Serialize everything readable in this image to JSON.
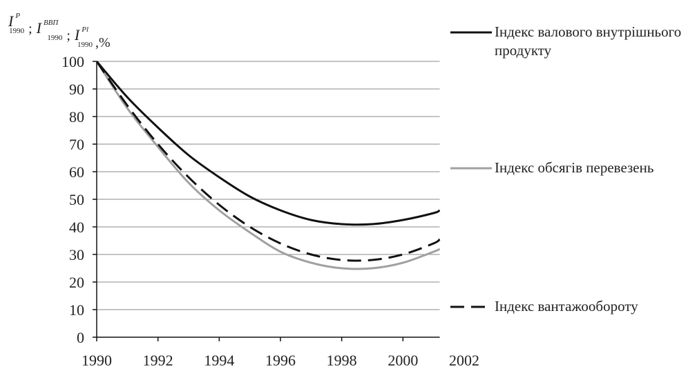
{
  "chart_data": {
    "type": "line",
    "ylabel": {
      "symbols": [
        {
          "base": "I",
          "sup": "P",
          "sub": "1990"
        },
        {
          "base": "I",
          "sup": "ВВП",
          "sub": "1990"
        },
        {
          "base": "I",
          "sup": "Pl",
          "sub": "1990"
        }
      ],
      "separator": ";",
      "unit": ",%"
    },
    "x": [
      1990,
      1991,
      1992,
      1993,
      1994,
      1995,
      1996,
      1997,
      1998,
      1999,
      2000,
      2001,
      2001.2
    ],
    "series": [
      {
        "name": "Індекс валового внутрішнього продукту",
        "color": "#111111",
        "dash": "solid",
        "values": [
          100,
          87,
          76,
          66,
          58,
          51,
          46,
          42.5,
          41,
          41,
          42.5,
          45,
          46
        ]
      },
      {
        "name": "Індекс обсягів перевезень",
        "color": "#a0a0a0",
        "dash": "solid",
        "values": [
          100,
          83,
          69,
          56,
          46,
          38,
          31,
          27,
          25,
          25,
          27,
          31,
          32
        ]
      },
      {
        "name": "Індекс вантажообороту",
        "color": "#111111",
        "dash": "dashed",
        "values": [
          100,
          84,
          70,
          58,
          48,
          40,
          34,
          30,
          28,
          28,
          30,
          34,
          35.5
        ]
      }
    ],
    "xlim": [
      1990,
      2002
    ],
    "xticks": [
      1990,
      1992,
      1994,
      1996,
      1998,
      2000,
      2002
    ],
    "ylim": [
      0,
      100
    ],
    "yticks": [
      0,
      10,
      20,
      30,
      40,
      50,
      60,
      70,
      80,
      90,
      100
    ],
    "grid": true
  }
}
